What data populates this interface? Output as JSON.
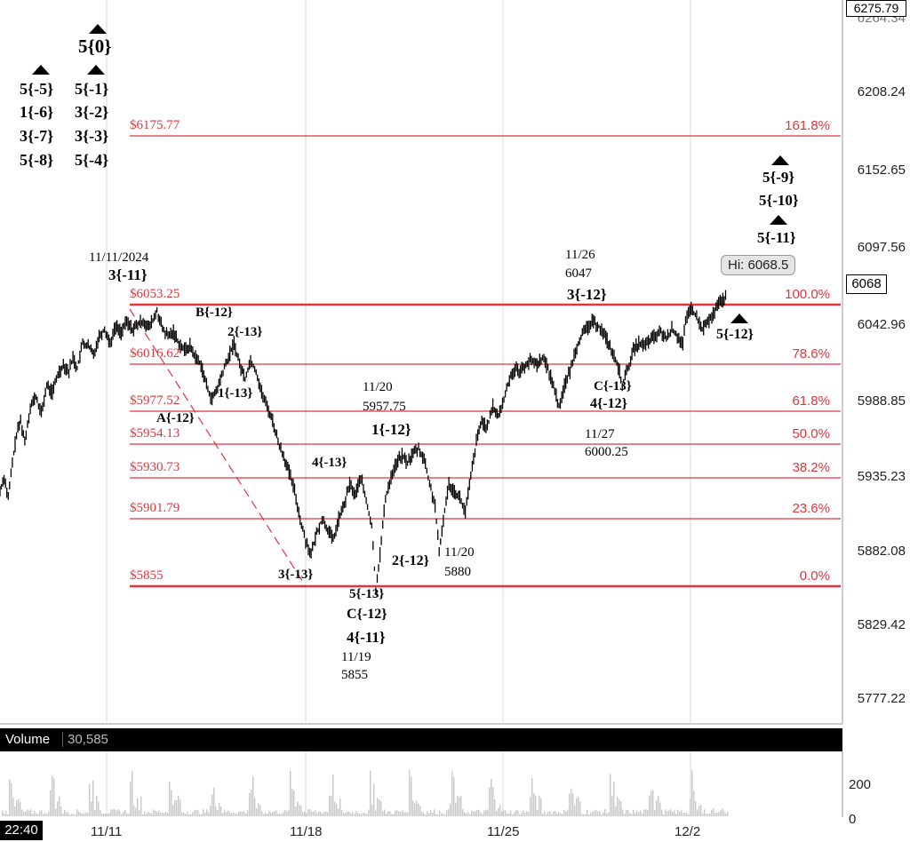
{
  "chart_data": {
    "type": "candlestick",
    "instrument_price": {
      "top_value": "6275.79",
      "overlapped_value": "6264.34",
      "current_price": "6068",
      "high_tooltip": "Hi: 6068.5"
    },
    "y_ticks": [
      "6208.24",
      "6152.65",
      "6097.56",
      "6042.96",
      "5988.85",
      "5935.23",
      "5882.08",
      "5829.42",
      "5777.22"
    ],
    "x_ticks": [
      "11/11",
      "11/18",
      "11/25",
      "12/2"
    ],
    "time_label": "22:40",
    "fib_levels": [
      {
        "price": "$6175.77",
        "pct": "161.8%"
      },
      {
        "price": "$6053.25",
        "pct": "100.0%"
      },
      {
        "price": "$6016.62",
        "pct": "78.6%"
      },
      {
        "price": "$5977.52",
        "pct": "61.8%"
      },
      {
        "price": "$5954.13",
        "pct": "50.0%"
      },
      {
        "price": "$5930.73",
        "pct": "38.2%"
      },
      {
        "price": "$5901.79",
        "pct": "23.6%"
      },
      {
        "price": "$5855",
        "pct": "0.0%"
      }
    ],
    "price_path": [
      [
        0,
        5925
      ],
      [
        3,
        5935
      ],
      [
        6,
        5920
      ],
      [
        9,
        5945
      ],
      [
        12,
        5965
      ],
      [
        15,
        5975
      ],
      [
        18,
        5960
      ],
      [
        22,
        5985
      ],
      [
        26,
        5992
      ],
      [
        30,
        5980
      ],
      [
        34,
        6000
      ],
      [
        38,
        5995
      ],
      [
        42,
        6008
      ],
      [
        46,
        6015
      ],
      [
        50,
        6010
      ],
      [
        53,
        6020
      ],
      [
        56,
        6012
      ],
      [
        60,
        6030
      ],
      [
        64,
        6028
      ],
      [
        68,
        6022
      ],
      [
        72,
        6035
      ],
      [
        76,
        6040
      ],
      [
        80,
        6030
      ],
      [
        84,
        6042
      ],
      [
        88,
        6038
      ],
      [
        92,
        6045
      ],
      [
        96,
        6040
      ],
      [
        100,
        6043
      ],
      [
        104,
        6046
      ],
      [
        108,
        6041
      ],
      [
        112,
        6048
      ],
      [
        114,
        6053
      ],
      [
        118,
        6040
      ],
      [
        122,
        6035
      ],
      [
        126,
        6038
      ],
      [
        130,
        6030
      ],
      [
        134,
        6025
      ],
      [
        138,
        6028
      ],
      [
        142,
        6020
      ],
      [
        146,
        6015
      ],
      [
        150,
        6000
      ],
      [
        154,
        5990
      ],
      [
        158,
        5998
      ],
      [
        162,
        6010
      ],
      [
        166,
        6020
      ],
      [
        170,
        6030
      ],
      [
        174,
        6015
      ],
      [
        178,
        6005
      ],
      [
        182,
        6018
      ],
      [
        186,
        6010
      ],
      [
        190,
        5995
      ],
      [
        194,
        5985
      ],
      [
        198,
        5975
      ],
      [
        202,
        5960
      ],
      [
        206,
        5950
      ],
      [
        210,
        5938
      ],
      [
        214,
        5925
      ],
      [
        218,
        5905
      ],
      [
        222,
        5890
      ],
      [
        226,
        5880
      ],
      [
        230,
        5895
      ],
      [
        234,
        5905
      ],
      [
        238,
        5898
      ],
      [
        242,
        5890
      ],
      [
        246,
        5905
      ],
      [
        250,
        5915
      ],
      [
        254,
        5930
      ],
      [
        258,
        5922
      ],
      [
        262,
        5935
      ],
      [
        266,
        5918
      ],
      [
        270,
        5900
      ],
      [
        273,
        5855
      ],
      [
        276,
        5880
      ],
      [
        280,
        5920
      ],
      [
        284,
        5935
      ],
      [
        288,
        5945
      ],
      [
        292,
        5950
      ],
      [
        296,
        5945
      ],
      [
        300,
        5952
      ],
      [
        304,
        5955
      ],
      [
        308,
        5948
      ],
      [
        312,
        5930
      ],
      [
        316,
        5915
      ],
      [
        319,
        5880
      ],
      [
        322,
        5905
      ],
      [
        326,
        5930
      ],
      [
        330,
        5925
      ],
      [
        334,
        5920
      ],
      [
        338,
        5910
      ],
      [
        342,
        5935
      ],
      [
        346,
        5960
      ],
      [
        350,
        5975
      ],
      [
        354,
        5970
      ],
      [
        358,
        5985
      ],
      [
        362,
        5978
      ],
      [
        366,
        5990
      ],
      [
        370,
        6005
      ],
      [
        374,
        6012
      ],
      [
        378,
        6010
      ],
      [
        382,
        6015
      ],
      [
        386,
        6018
      ],
      [
        390,
        6015
      ],
      [
        394,
        6020
      ],
      [
        398,
        6012
      ],
      [
        402,
        6000
      ],
      [
        406,
        5985
      ],
      [
        410,
        6000
      ],
      [
        414,
        6010
      ],
      [
        418,
        6025
      ],
      [
        422,
        6035
      ],
      [
        426,
        6040
      ],
      [
        430,
        6045
      ],
      [
        434,
        6043
      ],
      [
        438,
        6038
      ],
      [
        442,
        6030
      ],
      [
        446,
        6020
      ],
      [
        450,
        6010
      ],
      [
        452,
        6000
      ],
      [
        456,
        6012
      ],
      [
        460,
        6025
      ],
      [
        464,
        6030
      ],
      [
        468,
        6028
      ],
      [
        472,
        6032
      ],
      [
        476,
        6035
      ],
      [
        480,
        6038
      ],
      [
        484,
        6033
      ],
      [
        488,
        6040
      ],
      [
        492,
        6035
      ],
      [
        496,
        6030
      ],
      [
        498,
        6045
      ],
      [
        502,
        6055
      ],
      [
        506,
        6048
      ],
      [
        510,
        6040
      ],
      [
        514,
        6045
      ],
      [
        518,
        6050
      ],
      [
        522,
        6058
      ],
      [
        526,
        6062
      ],
      [
        528,
        6068
      ]
    ],
    "wave_labels": [
      "5{0}",
      "5{-5}",
      "1{-6}",
      "3{-7}",
      "5{-8}",
      "5{-1}",
      "3{-2}",
      "3{-3}",
      "5{-4}",
      "11/11/2024",
      "3{-11}",
      "B{-12}",
      "2{-13}",
      "1{-13}",
      "A{-12}",
      "4{-13}",
      "3{-13}",
      "5{-13}",
      "C{-12}",
      "4{-11}",
      "11/19",
      "5855",
      "11/20",
      "5957.75",
      "1{-12}",
      "2{-12}",
      "11/20",
      "5880",
      "11/26",
      "6047",
      "3{-12}",
      "C{-13}",
      "4{-12}",
      "11/27",
      "6000.25",
      "5{-12}",
      "5{-9}",
      "5{-10}",
      "5{-11}"
    ],
    "volume": {
      "label": "Volume",
      "value": "30,585",
      "ticks": [
        "200",
        "0"
      ]
    },
    "colors": {
      "fib": "#e0353d",
      "price": "#000000",
      "grid": "#d8d8d8",
      "volume": "#c8c8c8"
    }
  }
}
